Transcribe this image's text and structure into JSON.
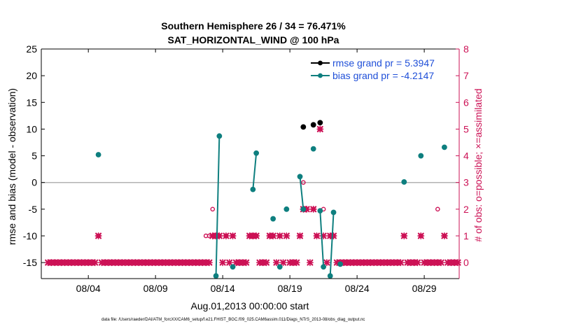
{
  "chart_data": {
    "type": "line",
    "title": [
      "Southern Hemisphere 26 / 34 = 76.471%",
      "SAT_HORIZONTAL_WIND @ 100 hPa"
    ],
    "xlabel": "Aug.01,2013 00:00:00 start",
    "ylabel": "rmse and bias (model - observation)",
    "y2label": "# of obs: o=possible; ×=assimilated",
    "xlim": [
      0.5,
      31.6
    ],
    "ylim": [
      -18,
      25
    ],
    "y2lim": [
      -0.6,
      8
    ],
    "x_ticks": [
      4,
      9,
      14,
      19,
      24,
      29
    ],
    "x_tick_labels": [
      "08/04",
      "08/09",
      "08/14",
      "08/19",
      "08/24",
      "08/29"
    ],
    "y_ticks": [
      -15,
      -10,
      -5,
      0,
      5,
      10,
      15,
      20,
      25
    ],
    "y_tick_labels": [
      "-15",
      "-10",
      "-5",
      "0",
      "5",
      "10",
      "15",
      "20",
      "25"
    ],
    "y2_ticks": [
      0,
      1,
      2,
      3,
      4,
      5,
      6,
      7,
      8
    ],
    "y2_tick_labels": [
      "0",
      "1",
      "2",
      "3",
      "4",
      "5",
      "6",
      "7",
      "8"
    ],
    "zero_line": 0,
    "colors": {
      "rmse": "#000000",
      "bias": "#0e7f7f",
      "obs": "#cc1155",
      "zero": "#b3b3b3",
      "axis": "#000000"
    },
    "series": [
      {
        "name": "rmse grand pr = 5.3947",
        "axis": "left",
        "segments": [
          [
            [
              20.0,
              10.4
            ]
          ],
          [
            [
              20.75,
              10.8
            ]
          ],
          [
            [
              21.25,
              11.2
            ]
          ]
        ]
      },
      {
        "name": "bias grand pr = -4.2147",
        "axis": "left",
        "segments": [
          [
            [
              4.75,
              5.2
            ]
          ],
          [
            [
              13.5,
              -17.5
            ],
            [
              13.75,
              8.7
            ]
          ],
          [
            [
              14.75,
              -15.8
            ]
          ],
          [
            [
              16.25,
              -1.3
            ],
            [
              16.5,
              5.5
            ]
          ],
          [
            [
              17.75,
              -6.8
            ]
          ],
          [
            [
              18.25,
              -15.8
            ]
          ],
          [
            [
              18.75,
              -5.0
            ]
          ],
          [
            [
              19.75,
              1.1
            ],
            [
              20.0,
              -5.0
            ]
          ],
          [
            [
              20.75,
              6.3
            ]
          ],
          [
            [
              21.25,
              -5.3
            ],
            [
              21.5,
              -15.8
            ]
          ],
          [
            [
              22.0,
              -17.5
            ],
            [
              22.25,
              -5.6
            ]
          ],
          [
            [
              22.75,
              -15.3
            ]
          ],
          [
            [
              27.5,
              0.1
            ]
          ],
          [
            [
              28.75,
              5.0
            ]
          ],
          [
            [
              30.5,
              6.6
            ]
          ]
        ]
      },
      {
        "name": "obs possible",
        "axis": "right",
        "marker": "circle",
        "points": [
          [
            4.75,
            1
          ],
          [
            12.75,
            1
          ],
          [
            13.0,
            1
          ],
          [
            13.25,
            2
          ],
          [
            13.5,
            1
          ],
          [
            13.75,
            1
          ],
          [
            14.25,
            1
          ],
          [
            14.75,
            1
          ],
          [
            16.0,
            1
          ],
          [
            16.25,
            1
          ],
          [
            16.5,
            1
          ],
          [
            17.5,
            1
          ],
          [
            17.75,
            1
          ],
          [
            18.25,
            1
          ],
          [
            18.75,
            2
          ],
          [
            19.75,
            1
          ],
          [
            20.0,
            3
          ],
          [
            20.25,
            2
          ],
          [
            20.75,
            2
          ],
          [
            21.0,
            1
          ],
          [
            21.25,
            5
          ],
          [
            21.5,
            2
          ],
          [
            22.0,
            1
          ],
          [
            22.25,
            1
          ],
          [
            27.5,
            1
          ],
          [
            28.75,
            1
          ],
          [
            30.0,
            2
          ],
          [
            30.5,
            1
          ]
        ]
      },
      {
        "name": "obs assimilated",
        "axis": "right",
        "marker": "cross",
        "points": [
          [
            4.75,
            1
          ],
          [
            13.25,
            1
          ],
          [
            13.5,
            1
          ],
          [
            13.75,
            1
          ],
          [
            14.25,
            1
          ],
          [
            14.75,
            1
          ],
          [
            16.0,
            1
          ],
          [
            16.25,
            1
          ],
          [
            16.5,
            1
          ],
          [
            17.5,
            1
          ],
          [
            17.75,
            1
          ],
          [
            18.25,
            1
          ],
          [
            18.75,
            1
          ],
          [
            19.75,
            1
          ],
          [
            20.0,
            2
          ],
          [
            20.25,
            2
          ],
          [
            20.75,
            2
          ],
          [
            21.0,
            1
          ],
          [
            21.25,
            5
          ],
          [
            21.5,
            1
          ],
          [
            22.0,
            1
          ],
          [
            22.25,
            1
          ],
          [
            27.5,
            1
          ],
          [
            28.75,
            1
          ],
          [
            30.5,
            1
          ]
        ],
        "baseline_zero": true
      }
    ],
    "legend": {
      "position": "top-right",
      "entries": [
        {
          "label": "rmse grand pr = 5.3947",
          "color": "#000000"
        },
        {
          "label": "bias grand pr = -4.2147",
          "color": "#0e7f7f"
        }
      ]
    },
    "footnote": "data file: /Users/raeder/DAI/ATM_forcXX/CAM6_setup/f.e21.FHIST_BGC.f09_025.CAM6assim.011/Diags_NTrS_2013-08/obs_diag_output.nc"
  }
}
